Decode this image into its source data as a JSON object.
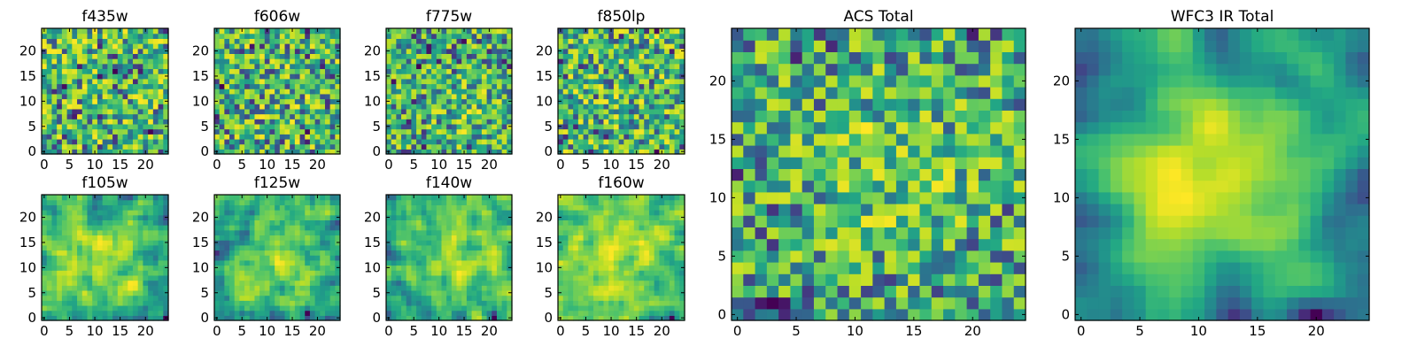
{
  "chart_data": [
    {
      "type": "heatmap",
      "title": "f435w",
      "xlim": [
        0,
        24
      ],
      "ylim": [
        0,
        24
      ],
      "xticks": [
        0,
        5,
        10,
        15,
        20
      ],
      "yticks": [
        0,
        5,
        10,
        15,
        20
      ],
      "smoothness": 0,
      "center": [
        12,
        12
      ],
      "sigma": 5,
      "peak": 0.0,
      "seed": 11
    },
    {
      "type": "heatmap",
      "title": "f606w",
      "xlim": [
        0,
        24
      ],
      "ylim": [
        0,
        24
      ],
      "xticks": [
        0,
        5,
        10,
        15,
        20
      ],
      "yticks": [
        0,
        5,
        10,
        15,
        20
      ],
      "smoothness": 0,
      "center": [
        12,
        12
      ],
      "sigma": 5,
      "peak": 0.05,
      "seed": 23
    },
    {
      "type": "heatmap",
      "title": "f775w",
      "xlim": [
        0,
        24
      ],
      "ylim": [
        0,
        24
      ],
      "xticks": [
        0,
        5,
        10,
        15,
        20
      ],
      "yticks": [
        0,
        5,
        10,
        15,
        20
      ],
      "smoothness": 0,
      "center": [
        16,
        8
      ],
      "sigma": 4,
      "peak": 0.15,
      "seed": 37
    },
    {
      "type": "heatmap",
      "title": "f850lp",
      "xlim": [
        0,
        24
      ],
      "ylim": [
        0,
        24
      ],
      "xticks": [
        0,
        5,
        10,
        15,
        20
      ],
      "yticks": [
        0,
        5,
        10,
        15,
        20
      ],
      "smoothness": 0,
      "center": [
        12,
        12
      ],
      "sigma": 5,
      "peak": 0.05,
      "seed": 41
    },
    {
      "type": "heatmap",
      "title": "f105w",
      "xlim": [
        0,
        24
      ],
      "ylim": [
        0,
        24
      ],
      "xticks": [
        0,
        5,
        10,
        15,
        20
      ],
      "yticks": [
        0,
        5,
        10,
        15,
        20
      ],
      "smoothness": 1,
      "center": [
        12,
        12
      ],
      "sigma": 6,
      "peak": 0.2,
      "seed": 53
    },
    {
      "type": "heatmap",
      "title": "f125w",
      "xlim": [
        0,
        24
      ],
      "ylim": [
        0,
        24
      ],
      "xticks": [
        0,
        5,
        10,
        15,
        20
      ],
      "yticks": [
        0,
        5,
        10,
        15,
        20
      ],
      "smoothness": 1,
      "center": [
        12,
        12
      ],
      "sigma": 6,
      "peak": 0.2,
      "seed": 67
    },
    {
      "type": "heatmap",
      "title": "f140w",
      "xlim": [
        0,
        24
      ],
      "ylim": [
        0,
        24
      ],
      "xticks": [
        0,
        5,
        10,
        15,
        20
      ],
      "yticks": [
        0,
        5,
        10,
        15,
        20
      ],
      "smoothness": 1,
      "center": [
        14,
        12
      ],
      "sigma": 6,
      "peak": 0.25,
      "seed": 79
    },
    {
      "type": "heatmap",
      "title": "f160w",
      "xlim": [
        0,
        24
      ],
      "ylim": [
        0,
        24
      ],
      "xticks": [
        0,
        5,
        10,
        15,
        20
      ],
      "yticks": [
        0,
        5,
        10,
        15,
        20
      ],
      "smoothness": 1,
      "center": [
        12,
        12
      ],
      "sigma": 6,
      "peak": 0.3,
      "seed": 83
    },
    {
      "type": "heatmap",
      "title": "ACS Total",
      "xlim": [
        0,
        24
      ],
      "ylim": [
        0,
        24
      ],
      "xticks": [
        0,
        5,
        10,
        15,
        20
      ],
      "yticks": [
        0,
        5,
        10,
        15,
        20
      ],
      "smoothness": 0,
      "center": [
        13,
        13
      ],
      "sigma": 6,
      "peak": 0.2,
      "seed": 97
    },
    {
      "type": "heatmap",
      "title": "WFC3 IR Total",
      "xlim": [
        0,
        24
      ],
      "ylim": [
        0,
        24
      ],
      "xticks": [
        0,
        5,
        10,
        15,
        20
      ],
      "yticks": [
        0,
        5,
        10,
        15,
        20
      ],
      "smoothness": 2,
      "center": [
        12,
        12
      ],
      "sigma": 6,
      "peak": 0.45,
      "seed": 101
    }
  ],
  "colormap": "viridis"
}
